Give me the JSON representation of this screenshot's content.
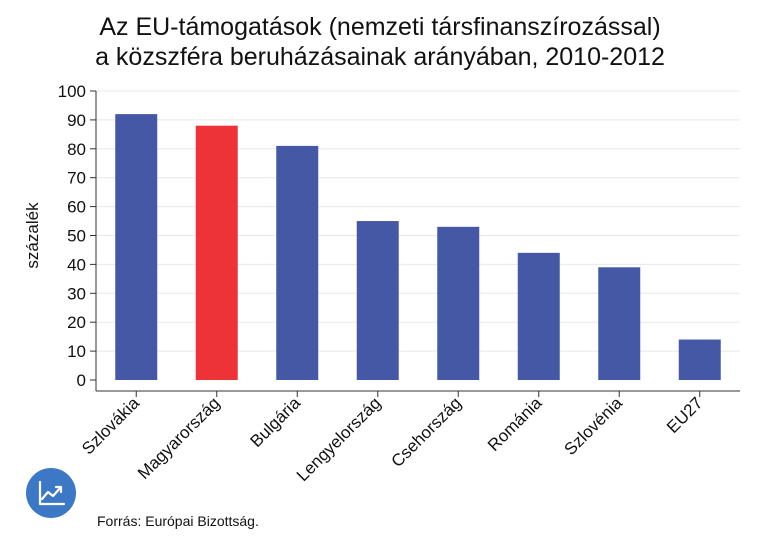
{
  "title_line1": "Az EU-támogatások (nemzeti társfinanszírozással)",
  "title_line2": "a közszféra beruházásainak arányában, 2010-2012",
  "source": "Forrás: Európai Bizottság.",
  "colors": {
    "default_bar": "#4558a6",
    "highlight_bar": "#ee3338",
    "axis": "#333333",
    "grid": "#e8e8e8"
  },
  "logo_icon": "chart-trend-icon",
  "chart_data": {
    "type": "bar",
    "categories": [
      "Szlovákia",
      "Magyarország",
      "Bulgária",
      "Lengyelország",
      "Csehország",
      "Románia",
      "Szlovénia",
      "EU27"
    ],
    "values": [
      92,
      88,
      81,
      55,
      53,
      44,
      39,
      14
    ],
    "highlight_index": 1,
    "ylabel": "százalék",
    "ylim": [
      0,
      100
    ],
    "yticks": [
      0,
      10,
      20,
      30,
      40,
      50,
      60,
      70,
      80,
      90,
      100
    ],
    "grid": true
  }
}
